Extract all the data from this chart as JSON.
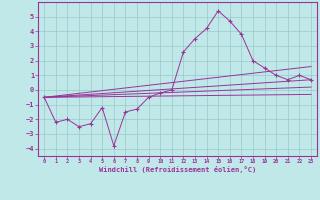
{
  "xlabel": "Windchill (Refroidissement éolien,°C)",
  "xlim": [
    -0.5,
    23.5
  ],
  "ylim": [
    -4.5,
    6.0
  ],
  "xticks": [
    0,
    1,
    2,
    3,
    4,
    5,
    6,
    7,
    8,
    9,
    10,
    11,
    12,
    13,
    14,
    15,
    16,
    17,
    18,
    19,
    20,
    21,
    22,
    23
  ],
  "yticks": [
    -4,
    -3,
    -2,
    -1,
    0,
    1,
    2,
    3,
    4,
    5
  ],
  "background_color": "#c0e8e8",
  "grid_color": "#98c8c8",
  "line_color": "#993399",
  "main_series_x": [
    0,
    1,
    2,
    3,
    4,
    5,
    6,
    7,
    8,
    9,
    10,
    11,
    12,
    13,
    14,
    15,
    16,
    17,
    18,
    19,
    20,
    21,
    22,
    23
  ],
  "main_series_y": [
    -0.5,
    -2.2,
    -2.0,
    -2.5,
    -2.3,
    -1.2,
    -3.8,
    -1.5,
    -1.3,
    -0.5,
    -0.2,
    0.0,
    2.6,
    3.5,
    4.2,
    5.4,
    4.7,
    3.8,
    2.0,
    1.5,
    1.0,
    0.7,
    1.0,
    0.7
  ],
  "linear_lines": [
    {
      "x0": 0,
      "y0": -0.5,
      "x1": 23,
      "y1": 1.6
    },
    {
      "x0": 0,
      "y0": -0.5,
      "x1": 23,
      "y1": 0.7
    },
    {
      "x0": 0,
      "y0": -0.5,
      "x1": 23,
      "y1": 0.2
    },
    {
      "x0": 0,
      "y0": -0.5,
      "x1": 23,
      "y1": -0.3
    }
  ]
}
